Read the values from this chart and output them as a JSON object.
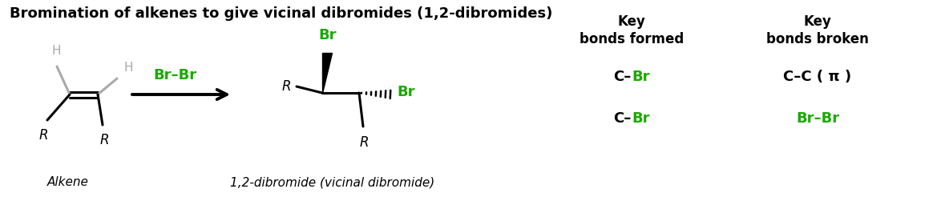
{
  "title": "Bromination of alkenes to give vicinal dibromides (1,2-dibromides)",
  "title_fontsize": 13,
  "bg_color": "#ffffff",
  "black": "#000000",
  "green": "#1aaa00",
  "gray": "#aaaaaa",
  "alkene_label": "Alkene",
  "product_label": "1,2-dibromide (vicinal dibromide)",
  "col_header_formed": "Key\nbonds formed",
  "col_header_broken": "Key\nbonds broken",
  "figw": 11.74,
  "figh": 2.66,
  "dpi": 100
}
